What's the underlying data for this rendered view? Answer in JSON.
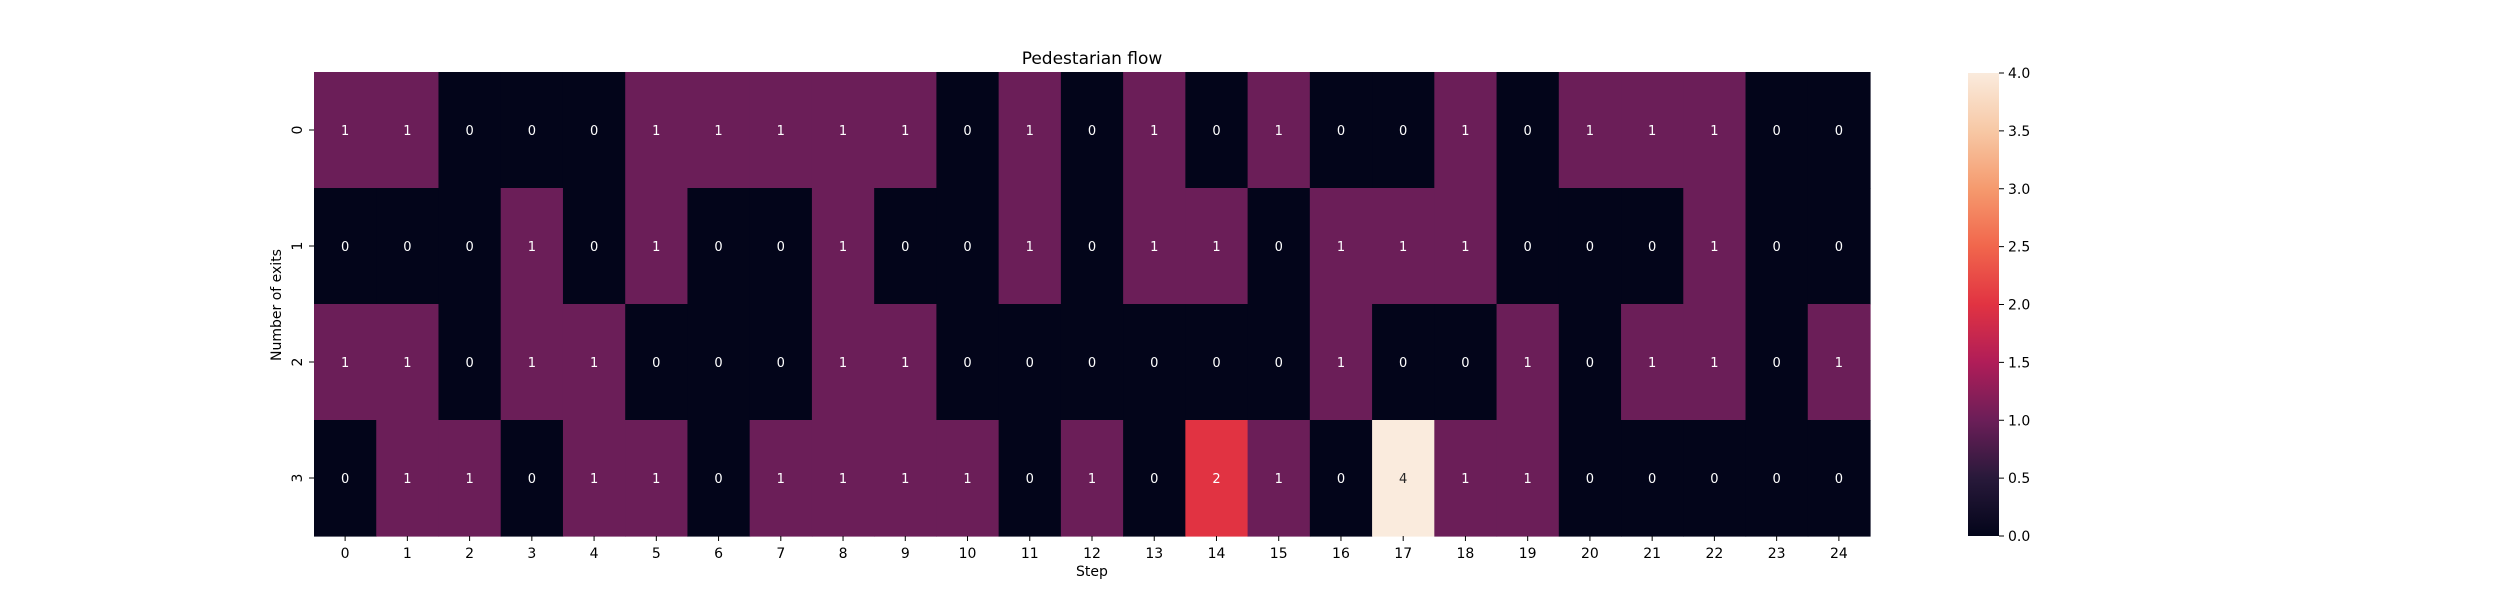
{
  "chart_data": {
    "type": "heatmap",
    "title": "Pedestarian flow",
    "xlabel": "Step",
    "ylabel": "Number of exits",
    "x_ticks": [
      "0",
      "1",
      "2",
      "3",
      "4",
      "5",
      "6",
      "7",
      "8",
      "9",
      "10",
      "11",
      "12",
      "13",
      "14",
      "15",
      "16",
      "17",
      "18",
      "19",
      "20",
      "21",
      "22",
      "23",
      "24"
    ],
    "y_ticks": [
      "0",
      "1",
      "2",
      "3"
    ],
    "values": [
      [
        1,
        1,
        0,
        0,
        0,
        1,
        1,
        1,
        1,
        1,
        0,
        1,
        0,
        1,
        0,
        1,
        0,
        0,
        1,
        0,
        1,
        1,
        1,
        0,
        0
      ],
      [
        0,
        0,
        0,
        1,
        0,
        1,
        0,
        0,
        1,
        0,
        0,
        1,
        0,
        1,
        1,
        0,
        1,
        1,
        1,
        0,
        0,
        0,
        1,
        0,
        0
      ],
      [
        1,
        1,
        0,
        1,
        1,
        0,
        0,
        0,
        1,
        1,
        0,
        0,
        0,
        0,
        0,
        0,
        1,
        0,
        0,
        1,
        0,
        1,
        1,
        0,
        1
      ],
      [
        0,
        1,
        1,
        0,
        1,
        1,
        0,
        1,
        1,
        1,
        1,
        0,
        1,
        0,
        2,
        1,
        0,
        4,
        1,
        1,
        0,
        0,
        0,
        0,
        0
      ]
    ],
    "colorbar": {
      "min": 0,
      "max": 4,
      "ticks": [
        "0.0",
        "0.5",
        "1.0",
        "1.5",
        "2.0",
        "2.5",
        "3.0",
        "3.5",
        "4.0"
      ],
      "colormap": "rocket"
    }
  }
}
